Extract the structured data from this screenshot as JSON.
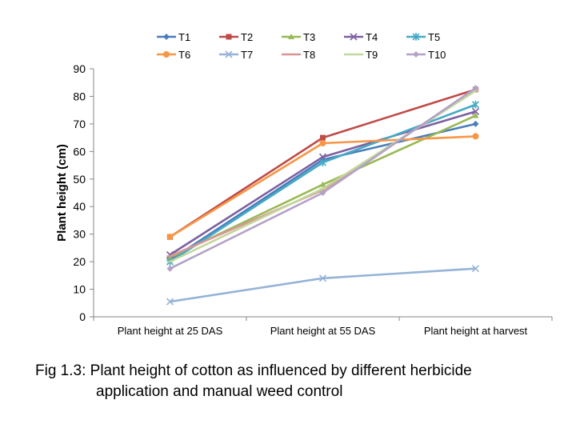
{
  "chart_data": {
    "type": "line",
    "title": "",
    "xlabel": "",
    "ylabel": "Plant height (cm)",
    "ylim": [
      0,
      90
    ],
    "yticks": [
      0,
      10,
      20,
      30,
      40,
      50,
      60,
      70,
      80,
      90
    ],
    "grid": false,
    "legend_position": "top",
    "categories": [
      "Plant height at 25 DAS",
      "Plant height at 55 DAS",
      "Plant height at harvest"
    ],
    "series": [
      {
        "name": "T1",
        "values": [
          20.5,
          57.0,
          70.0
        ],
        "color": "#4a7ebb",
        "marker": "diamond"
      },
      {
        "name": "T2",
        "values": [
          29.0,
          65.0,
          82.5
        ],
        "color": "#be4b48",
        "marker": "square"
      },
      {
        "name": "T3",
        "values": [
          21.5,
          48.0,
          73.0
        ],
        "color": "#98b954",
        "marker": "triangle"
      },
      {
        "name": "T4",
        "values": [
          22.5,
          58.0,
          74.5
        ],
        "color": "#7d60a0",
        "marker": "x"
      },
      {
        "name": "T5",
        "values": [
          20.0,
          56.0,
          77.0
        ],
        "color": "#46aac5",
        "marker": "star"
      },
      {
        "name": "T6",
        "values": [
          29.0,
          63.0,
          65.5
        ],
        "color": "#f79646",
        "marker": "circle"
      },
      {
        "name": "T7",
        "values": [
          5.5,
          14.0,
          17.5
        ],
        "color": "#95b3d7",
        "marker": "x"
      },
      {
        "name": "T8",
        "values": [
          22.0,
          46.0,
          82.5
        ],
        "color": "#d99694",
        "marker": "dash"
      },
      {
        "name": "T9",
        "values": [
          20.0,
          46.5,
          82.0
        ],
        "color": "#c3d69b",
        "marker": "dash"
      },
      {
        "name": "T10",
        "values": [
          17.5,
          45.0,
          83.0
        ],
        "color": "#b3a2c7",
        "marker": "diamond"
      }
    ]
  },
  "caption": {
    "line1": "Fig 1.3: Plant height of cotton as influenced by different herbicide",
    "line2": "application and manual weed control"
  }
}
